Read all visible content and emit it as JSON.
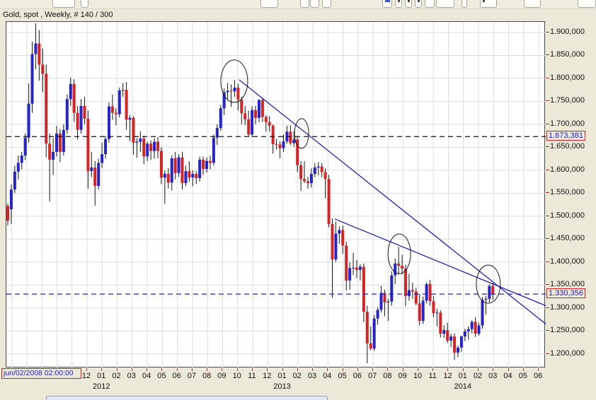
{
  "window": {
    "title": "Gold, spot , Weekly, # 140 / 300"
  },
  "toolbar": {
    "partial_buttons": [
      {
        "name": "toolbar-button-1",
        "x": 74,
        "w": 32,
        "glyph": ""
      },
      {
        "name": "toolbar-button-2",
        "x": 114,
        "w": 11,
        "glyph": ""
      },
      {
        "name": "toolbar-button-3",
        "x": 368,
        "w": 25,
        "glyph": ""
      },
      {
        "name": "toolbar-button-4",
        "x": 424,
        "w": 13,
        "glyph": ""
      },
      {
        "name": "toolbar-button-5",
        "x": 438,
        "w": 13,
        "glyph": ""
      },
      {
        "name": "toolbar-button-6",
        "x": 455,
        "w": 13,
        "glyph": ""
      },
      {
        "name": "toolbar-button-7",
        "x": 540,
        "w": 14,
        "glyph": "blue"
      },
      {
        "name": "toolbar-button-8",
        "x": 558,
        "w": 10,
        "glyph": "dark"
      },
      {
        "name": "toolbar-button-9",
        "x": 572,
        "w": 10,
        "glyph": "dark"
      },
      {
        "name": "toolbar-button-10",
        "x": 586,
        "w": 10,
        "glyph": "dark"
      },
      {
        "name": "toolbar-button-11",
        "x": 600,
        "w": 14,
        "glyph": ""
      },
      {
        "name": "toolbar-button-12",
        "x": 616,
        "w": 26,
        "glyph": ""
      },
      {
        "name": "toolbar-button-13",
        "x": 652,
        "w": 8,
        "glyph": ""
      },
      {
        "name": "toolbar-button-14",
        "x": 678,
        "w": 24,
        "glyph": "dark"
      },
      {
        "name": "toolbar-button-15",
        "x": 740,
        "w": 24,
        "glyph": ""
      },
      {
        "name": "toolbar-button-16",
        "x": 816,
        "w": 26,
        "glyph": ""
      }
    ]
  },
  "crosshair_label": "jun/02/2008 02:00:00",
  "price_axis": {
    "labels": [
      {
        "text": "1.900,000",
        "price": 1900
      },
      {
        "text": "1.850,000",
        "price": 1850
      },
      {
        "text": "1.800,000",
        "price": 1800
      },
      {
        "text": "1.750,000",
        "price": 1750
      },
      {
        "text": "1.700,000",
        "price": 1700
      },
      {
        "text": "1.650,000",
        "price": 1650
      },
      {
        "text": "1.600,000",
        "price": 1600
      },
      {
        "text": "1.550,000",
        "price": 1550
      },
      {
        "text": "1.500,000",
        "price": 1500
      },
      {
        "text": "1.450,000",
        "price": 1450
      },
      {
        "text": "1.400,000",
        "price": 1400
      },
      {
        "text": "1.350,000",
        "price": 1350
      },
      {
        "text": "1.300,000",
        "price": 1300
      },
      {
        "text": "1.250,000",
        "price": 1250
      },
      {
        "text": "1.200,000",
        "price": 1200
      }
    ],
    "tracked": [
      {
        "text": "1.673,381",
        "price": 1673.381
      },
      {
        "text": "1.330,356",
        "price": 1330.356
      }
    ]
  },
  "time_axis": {
    "months": [
      "12",
      "01",
      "02",
      "03",
      "04",
      "05",
      "06",
      "07",
      "08",
      "09",
      "10",
      "11",
      "12",
      "01",
      "02",
      "03",
      "04",
      "05",
      "06",
      "07",
      "08",
      "09",
      "10",
      "11",
      "12",
      "01",
      "02",
      "03",
      "04",
      "05",
      "06"
    ],
    "hidden_months_before": 5,
    "years": [
      {
        "label": "2012",
        "month_index": 1
      },
      {
        "label": "2013",
        "month_index": 13
      },
      {
        "label": "2014",
        "month_index": 25
      }
    ]
  },
  "chart_data": {
    "type": "candlestick",
    "instrument": "Gold, spot",
    "timeframe": "Weekly",
    "bars_shown": "140 / 300",
    "title": "Gold, spot , Weekly, # 140 / 300",
    "ylim": [
      1169,
      1923
    ],
    "grid": true,
    "candles": [
      [
        1522,
        1528,
        1480,
        1490
      ],
      [
        1515,
        1569,
        1483,
        1558
      ],
      [
        1558,
        1610,
        1550,
        1597
      ],
      [
        1597,
        1632,
        1580,
        1616
      ],
      [
        1616,
        1640,
        1602,
        1632
      ],
      [
        1632,
        1680,
        1622,
        1671
      ],
      [
        1671,
        1789,
        1660,
        1745
      ],
      [
        1745,
        1880,
        1725,
        1853
      ],
      [
        1853,
        1920,
        1820,
        1876
      ],
      [
        1876,
        1905,
        1795,
        1830
      ],
      [
        1830,
        1865,
        1770,
        1810
      ],
      [
        1810,
        1830,
        1628,
        1658
      ],
      [
        1658,
        1680,
        1532,
        1623
      ],
      [
        1623,
        1670,
        1590,
        1640
      ],
      [
        1640,
        1696,
        1630,
        1680
      ],
      [
        1680,
        1690,
        1618,
        1640
      ],
      [
        1640,
        1700,
        1632,
        1688
      ],
      [
        1688,
        1765,
        1680,
        1755
      ],
      [
        1755,
        1802,
        1740,
        1788
      ],
      [
        1788,
        1798,
        1705,
        1725
      ],
      [
        1725,
        1740,
        1667,
        1688
      ],
      [
        1688,
        1755,
        1680,
        1740
      ],
      [
        1740,
        1760,
        1700,
        1712
      ],
      [
        1712,
        1730,
        1560,
        1598
      ],
      [
        1598,
        1640,
        1585,
        1606
      ],
      [
        1606,
        1620,
        1523,
        1566
      ],
      [
        1566,
        1625,
        1558,
        1616
      ],
      [
        1616,
        1660,
        1605,
        1635
      ],
      [
        1635,
        1675,
        1625,
        1668
      ],
      [
        1668,
        1748,
        1660,
        1739
      ],
      [
        1739,
        1765,
        1710,
        1725
      ],
      [
        1725,
        1735,
        1698,
        1722
      ],
      [
        1722,
        1780,
        1715,
        1774
      ],
      [
        1774,
        1790,
        1760,
        1775
      ],
      [
        1775,
        1792,
        1688,
        1710
      ],
      [
        1710,
        1720,
        1663,
        1714
      ],
      [
        1714,
        1718,
        1634,
        1660
      ],
      [
        1660,
        1670,
        1627,
        1662
      ],
      [
        1662,
        1685,
        1640,
        1669
      ],
      [
        1669,
        1675,
        1613,
        1630
      ],
      [
        1630,
        1662,
        1620,
        1658
      ],
      [
        1658,
        1665,
        1623,
        1642
      ],
      [
        1642,
        1670,
        1625,
        1662
      ],
      [
        1662,
        1672,
        1626,
        1642
      ],
      [
        1642,
        1650,
        1570,
        1584
      ],
      [
        1584,
        1600,
        1527,
        1592
      ],
      [
        1592,
        1605,
        1560,
        1573
      ],
      [
        1573,
        1632,
        1556,
        1626
      ],
      [
        1626,
        1640,
        1580,
        1594
      ],
      [
        1594,
        1635,
        1585,
        1628
      ],
      [
        1628,
        1640,
        1558,
        1572
      ],
      [
        1572,
        1610,
        1565,
        1598
      ],
      [
        1598,
        1620,
        1575,
        1584
      ],
      [
        1584,
        1600,
        1565,
        1592
      ],
      [
        1592,
        1598,
        1570,
        1583
      ],
      [
        1583,
        1630,
        1575,
        1623
      ],
      [
        1623,
        1630,
        1590,
        1603
      ],
      [
        1603,
        1628,
        1595,
        1620
      ],
      [
        1620,
        1632,
        1602,
        1616
      ],
      [
        1616,
        1678,
        1610,
        1671
      ],
      [
        1671,
        1700,
        1655,
        1692
      ],
      [
        1692,
        1742,
        1686,
        1735
      ],
      [
        1735,
        1778,
        1720,
        1770
      ],
      [
        1770,
        1790,
        1755,
        1773
      ],
      [
        1773,
        1787,
        1738,
        1772
      ],
      [
        1772,
        1796,
        1760,
        1780
      ],
      [
        1780,
        1788,
        1730,
        1754
      ],
      [
        1754,
        1760,
        1700,
        1724
      ],
      [
        1724,
        1740,
        1698,
        1711
      ],
      [
        1711,
        1730,
        1674,
        1678
      ],
      [
        1678,
        1739,
        1672,
        1731
      ],
      [
        1731,
        1740,
        1700,
        1714
      ],
      [
        1714,
        1755,
        1705,
        1753
      ],
      [
        1753,
        1758,
        1705,
        1716
      ],
      [
        1716,
        1720,
        1684,
        1705
      ],
      [
        1705,
        1718,
        1684,
        1697
      ],
      [
        1697,
        1700,
        1636,
        1657
      ],
      [
        1657,
        1668,
        1645,
        1656
      ],
      [
        1656,
        1663,
        1626,
        1648
      ],
      [
        1648,
        1678,
        1640,
        1663
      ],
      [
        1663,
        1697,
        1658,
        1684
      ],
      [
        1684,
        1698,
        1655,
        1659
      ],
      [
        1659,
        1685,
        1651,
        1667
      ],
      [
        1667,
        1672,
        1596,
        1611
      ],
      [
        1611,
        1620,
        1555,
        1581
      ],
      [
        1581,
        1620,
        1572,
        1576
      ],
      [
        1576,
        1586,
        1560,
        1572
      ],
      [
        1572,
        1604,
        1562,
        1592
      ],
      [
        1592,
        1615,
        1585,
        1606
      ],
      [
        1606,
        1618,
        1589,
        1608
      ],
      [
        1608,
        1615,
        1585,
        1596
      ],
      [
        1596,
        1604,
        1539,
        1581
      ],
      [
        1581,
        1590,
        1476,
        1483
      ],
      [
        1483,
        1495,
        1322,
        1406
      ],
      [
        1406,
        1488,
        1400,
        1462
      ],
      [
        1462,
        1478,
        1440,
        1470
      ],
      [
        1470,
        1480,
        1418,
        1436
      ],
      [
        1436,
        1445,
        1338,
        1360
      ],
      [
        1360,
        1400,
        1340,
        1387
      ],
      [
        1387,
        1420,
        1372,
        1388
      ],
      [
        1388,
        1405,
        1365,
        1383
      ],
      [
        1383,
        1395,
        1360,
        1390
      ],
      [
        1390,
        1397,
        1269,
        1292
      ],
      [
        1292,
        1305,
        1180,
        1223
      ],
      [
        1223,
        1260,
        1208,
        1212
      ],
      [
        1212,
        1285,
        1207,
        1277
      ],
      [
        1277,
        1302,
        1264,
        1296
      ],
      [
        1296,
        1348,
        1290,
        1333
      ],
      [
        1333,
        1340,
        1282,
        1312
      ],
      [
        1312,
        1320,
        1272,
        1314
      ],
      [
        1314,
        1380,
        1305,
        1371
      ],
      [
        1371,
        1408,
        1352,
        1397
      ],
      [
        1397,
        1433,
        1373,
        1392
      ],
      [
        1392,
        1416,
        1373,
        1386
      ],
      [
        1386,
        1394,
        1304,
        1326
      ],
      [
        1326,
        1375,
        1316,
        1339
      ],
      [
        1339,
        1355,
        1320,
        1336
      ],
      [
        1336,
        1344,
        1306,
        1310
      ],
      [
        1310,
        1330,
        1262,
        1272
      ],
      [
        1272,
        1325,
        1265,
        1316
      ],
      [
        1316,
        1356,
        1310,
        1352
      ],
      [
        1352,
        1361,
        1305,
        1315
      ],
      [
        1315,
        1326,
        1280,
        1289
      ],
      [
        1289,
        1298,
        1260,
        1290
      ],
      [
        1290,
        1295,
        1236,
        1244
      ],
      [
        1244,
        1262,
        1235,
        1252
      ],
      [
        1252,
        1268,
        1224,
        1229
      ],
      [
        1229,
        1244,
        1215,
        1238
      ],
      [
        1238,
        1245,
        1187,
        1203
      ],
      [
        1203,
        1218,
        1193,
        1214
      ],
      [
        1214,
        1240,
        1205,
        1238
      ],
      [
        1238,
        1255,
        1228,
        1249
      ],
      [
        1249,
        1260,
        1231,
        1254
      ],
      [
        1254,
        1273,
        1245,
        1270
      ],
      [
        1270,
        1280,
        1237,
        1244
      ],
      [
        1244,
        1268,
        1240,
        1262
      ],
      [
        1262,
        1324,
        1255,
        1318
      ],
      [
        1318,
        1326,
        1286,
        1320
      ],
      [
        1320,
        1352,
        1312,
        1348
      ],
      [
        1348,
        1355,
        1318,
        1330
      ]
    ],
    "hlines": [
      {
        "price": 1673.381,
        "style": "dashed",
        "color": "#101010",
        "label": "1.673,381"
      },
      {
        "price": 1330.356,
        "style": "dashed",
        "color": "#2020B8",
        "label": "1.330,356"
      }
    ],
    "trendlines": [
      {
        "t1": 66.3,
        "p1": 1797,
        "t2": 154.2,
        "p2": 1265
      },
      {
        "t1": 93.7,
        "p1": 1494,
        "t2": 154.2,
        "p2": 1305
      }
    ],
    "ellipses": [
      {
        "t": 64.9,
        "p": 1794,
        "rx": 19,
        "ry": 30
      },
      {
        "t": 84.2,
        "p": 1680,
        "rx": 10,
        "ry": 21
      },
      {
        "t": 112.2,
        "p": 1418,
        "rx": 16,
        "ry": 28
      },
      {
        "t": 137.7,
        "p": 1352,
        "rx": 17,
        "ry": 27
      }
    ],
    "colors": {
      "up": "#2424C8",
      "down": "#D42424",
      "wick": "#151515",
      "grid": "#DCDCDC",
      "trend": "#2222AA",
      "tick": "#993333",
      "tracked_text": "#2020C0",
      "tracked_border": "#CC2222"
    }
  }
}
